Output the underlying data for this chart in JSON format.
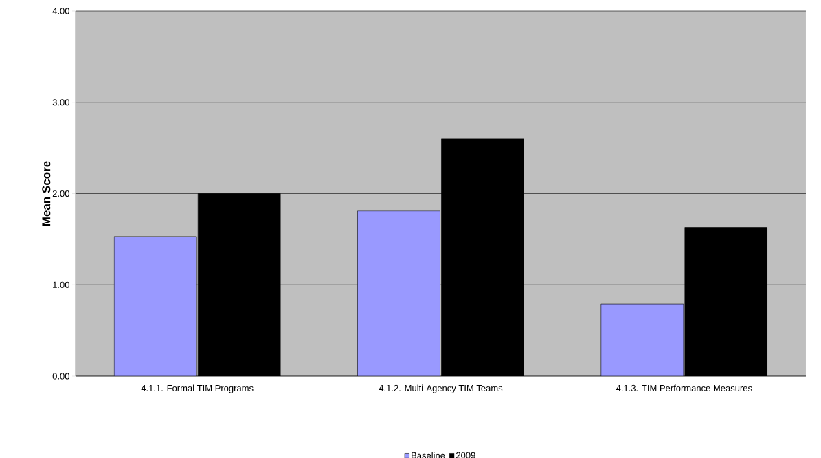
{
  "chart_data": {
    "type": "bar",
    "ylabel": "Mean Score",
    "categories": [
      "4.1.1. Formal TIM Programs",
      "4.1.2. Multi-Agency TIM Teams",
      "4.1.3. TIM Performance Measures"
    ],
    "series": [
      {
        "name": "Baseline",
        "color": "#9999ff",
        "values": [
          1.53,
          1.81,
          0.79
        ]
      },
      {
        "name": "2009",
        "color": "#000000",
        "values": [
          2.0,
          2.6,
          1.63
        ]
      }
    ],
    "ylim": [
      0,
      4
    ],
    "yticks": [
      {
        "value": 0,
        "label": "0.00"
      },
      {
        "value": 1,
        "label": "1.00"
      },
      {
        "value": 2,
        "label": "2.00"
      },
      {
        "value": 3,
        "label": "3.00"
      },
      {
        "value": 4,
        "label": "4.00"
      }
    ],
    "grid": "y",
    "legend": "bottom"
  }
}
